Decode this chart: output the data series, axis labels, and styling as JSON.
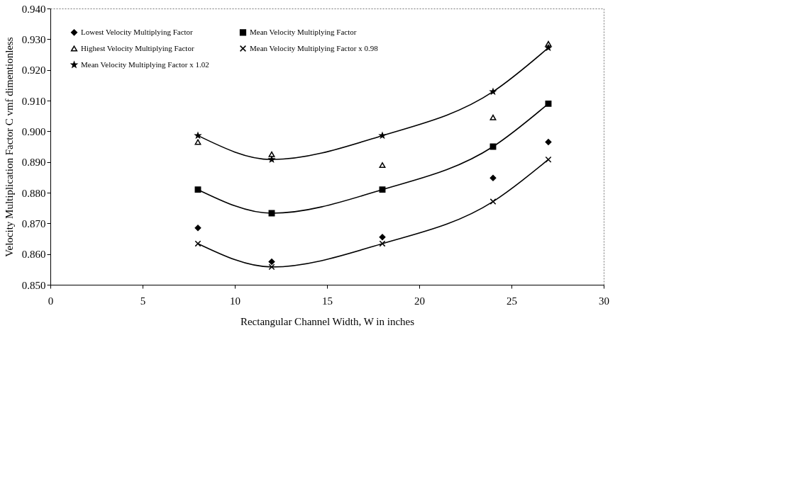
{
  "chart_data": {
    "type": "line",
    "xlabel": "Rectangular Channel Width, W in inches",
    "ylabel": "Velocity Multiplication Factor C vmf dimentionless",
    "x": [
      8,
      12,
      18,
      24,
      27
    ],
    "xlim": [
      0,
      30
    ],
    "xticks": [
      0,
      5,
      10,
      15,
      20,
      25,
      30
    ],
    "ylim": [
      0.85,
      0.94
    ],
    "yticks": [
      {
        "value": 0.85,
        "label": "0.850"
      },
      {
        "value": 0.86,
        "label": "0.860"
      },
      {
        "value": 0.87,
        "label": "0.870"
      },
      {
        "value": 0.88,
        "label": "0.880"
      },
      {
        "value": 0.89,
        "label": "0.890"
      },
      {
        "value": 0.9,
        "label": "0.900"
      },
      {
        "value": 0.91,
        "label": "0.910"
      },
      {
        "value": 0.92,
        "label": "0.920"
      },
      {
        "value": 0.93,
        "label": "0.930"
      },
      {
        "value": 0.94,
        "label": "0.940"
      }
    ],
    "grid": false,
    "legend": "top left",
    "series": [
      {
        "name": "Lowest Velocity Multiplying Factor",
        "type": "scatter",
        "marker": "diamond",
        "color": "#000000",
        "values": [
          0.8685,
          0.8575,
          0.8655,
          0.8848,
          0.8965
        ]
      },
      {
        "name": "Mean Velocity Multiplying Factor",
        "marker": "square",
        "color": "#000000",
        "values": [
          0.881,
          0.8733,
          0.881,
          0.895,
          0.909
        ]
      },
      {
        "name": "Highest Velocity Multiplying Factor",
        "type": "scatter",
        "marker": "triangle",
        "color": "#000000",
        "values": [
          0.8965,
          0.8925,
          0.889,
          0.9045,
          0.9285
        ]
      },
      {
        "name": "Mean Velocity Multiplying Factor x 0.98",
        "marker": "cross",
        "color": "#000000",
        "values": [
          0.8634,
          0.8558,
          0.8634,
          0.8771,
          0.8908
        ]
      },
      {
        "name": "Mean Velocity Multiplying Factor x 1.02",
        "marker": "star",
        "color": "#000000",
        "values": [
          0.8986,
          0.8908,
          0.8986,
          0.9129,
          0.9272
        ]
      }
    ]
  }
}
